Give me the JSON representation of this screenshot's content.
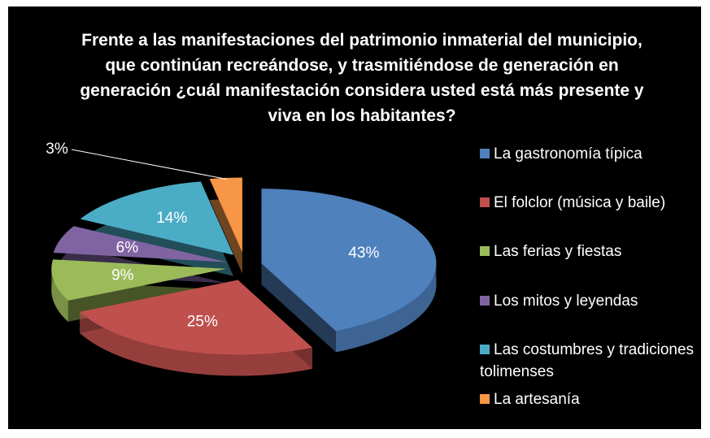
{
  "chart_data": {
    "type": "pie",
    "title": "Frente a las manifestaciones del patrimonio inmaterial del municipio, que continúan recreándose,  y trasmitiéndose de generación en generación ¿cuál manifestación considera usted está más presente y viva en los habitantes?",
    "categories": [
      "La gastronomía típica",
      "El folclor (música y baile)",
      "Las ferias y fiestas",
      "Los mitos y leyendas",
      "Las costumbres y tradiciones tolimenses",
      "La artesanía"
    ],
    "values": [
      43,
      25,
      9,
      6,
      14,
      3
    ],
    "value_labels": [
      "43%",
      "25%",
      "9%",
      "6%",
      "14%",
      "3%"
    ],
    "colors": [
      "#4f81bd",
      "#c0504d",
      "#9bbb59",
      "#8064a2",
      "#4bacc6",
      "#f79646"
    ],
    "legend": "right"
  }
}
